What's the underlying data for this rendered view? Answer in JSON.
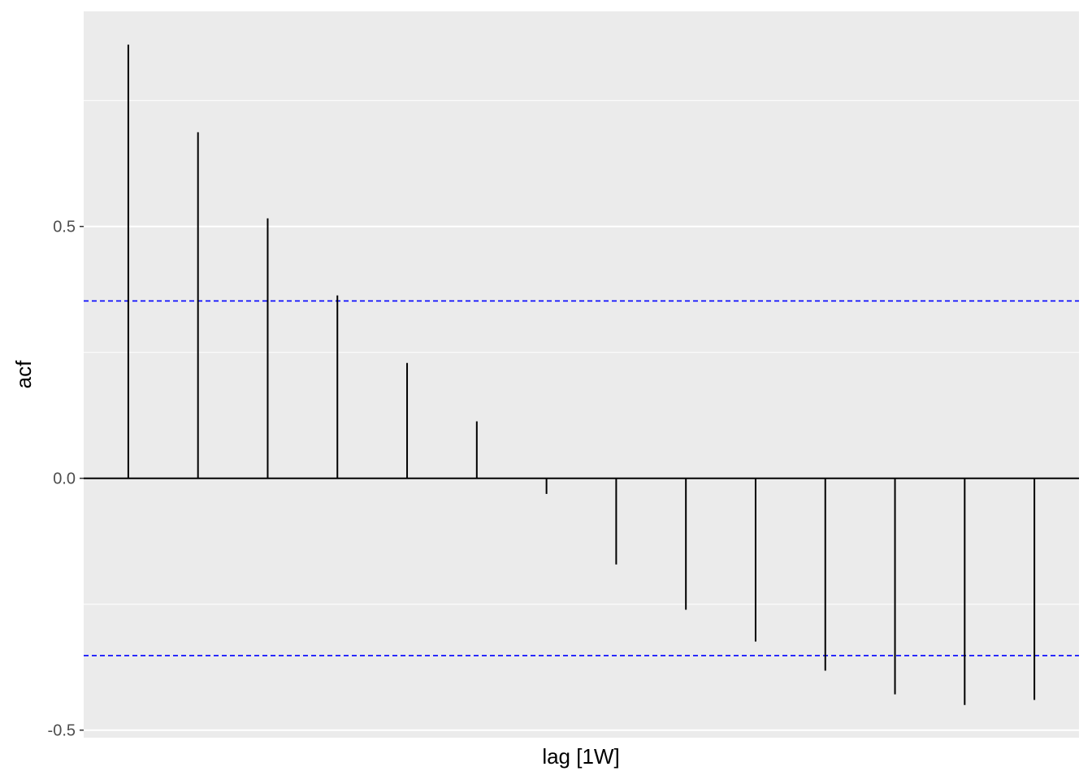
{
  "chart_data": {
    "type": "bar",
    "xlabel": "lag [1W]",
    "ylabel": "acf",
    "x": [
      1,
      2,
      3,
      4,
      5,
      6,
      7,
      8,
      9,
      10,
      11,
      12,
      13,
      14
    ],
    "values": [
      0.861,
      0.687,
      0.516,
      0.363,
      0.229,
      0.113,
      -0.031,
      -0.171,
      -0.261,
      -0.324,
      -0.382,
      -0.429,
      -0.45,
      -0.44
    ],
    "confidence_bounds": [
      0.352,
      -0.352
    ],
    "ylim": [
      -0.515,
      0.927
    ],
    "xlim": [
      0.36,
      14.64
    ],
    "y_ticks": [
      {
        "value": -0.5,
        "label": "-0.5"
      },
      {
        "value": 0,
        "label": "0.0"
      },
      {
        "value": 0.5,
        "label": "0.5"
      }
    ],
    "y_minor_gridlines": [
      -0.25,
      0.25,
      0.75
    ],
    "grid": true,
    "colors": {
      "panel": "#ebebeb",
      "grid": "#ffffff",
      "bars": "#000000",
      "bounds": "#0000ff"
    }
  }
}
